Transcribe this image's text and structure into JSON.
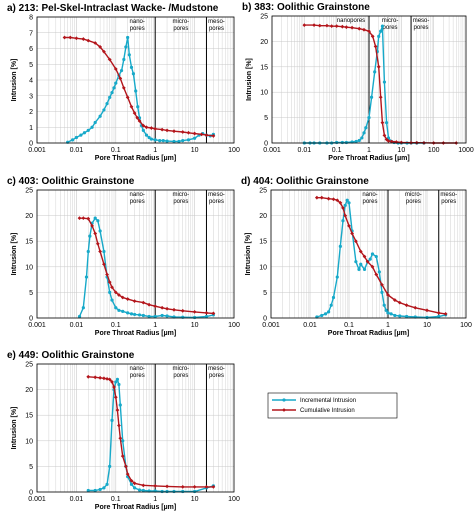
{
  "colors": {
    "incremental": "#17a9c9",
    "cumulative": "#b3151b",
    "grid": "#c8c8c8",
    "axis": "#000000"
  },
  "legend": {
    "incremental": "Incremental Intrusion",
    "cumulative": "Cumulative Intrusion"
  },
  "chart_data": [
    {
      "type": "line",
      "panel": "a",
      "title": "a) 213: Pel-Skel-Intraclast Wacke- /Mudstone",
      "xlabel": "Pore Throat Radius [µm]",
      "ylabel": "Intrusion [%]",
      "x_scale": "log",
      "xlim": [
        0.001,
        100
      ],
      "ylim": [
        0,
        8
      ],
      "yticks": [
        0,
        1,
        2,
        3,
        4,
        5,
        6,
        7,
        8
      ],
      "xticks": [
        "0.001",
        "0.01",
        "0.1",
        "1",
        "10",
        "100"
      ],
      "region_bounds": [
        1,
        20
      ],
      "regions": [
        "nano-\npores",
        "micro-\npores",
        "meso-\npores"
      ],
      "series": [
        {
          "name": "Incremental Intrusion",
          "x": [
            0.006,
            0.008,
            0.01,
            0.013,
            0.016,
            0.02,
            0.025,
            0.03,
            0.04,
            0.05,
            0.06,
            0.07,
            0.08,
            0.09,
            0.1,
            0.12,
            0.14,
            0.16,
            0.18,
            0.2,
            0.22,
            0.25,
            0.28,
            0.32,
            0.36,
            0.4,
            0.45,
            0.5,
            0.6,
            0.7,
            0.8,
            1,
            1.3,
            1.6,
            2,
            3,
            4,
            5,
            7,
            10,
            13,
            16,
            20,
            25,
            30
          ],
          "y": [
            0.05,
            0.2,
            0.35,
            0.5,
            0.65,
            0.8,
            1.0,
            1.3,
            1.7,
            2.1,
            2.5,
            2.9,
            3.2,
            3.5,
            3.8,
            4.3,
            4.6,
            5.3,
            6.1,
            6.7,
            5.6,
            4.8,
            4.4,
            3.3,
            2.3,
            1.6,
            1.1,
            0.8,
            0.5,
            0.35,
            0.25,
            0.2,
            0.15,
            0.15,
            0.12,
            0.1,
            0.1,
            0.15,
            0.2,
            0.3,
            0.5,
            0.6,
            0.5,
            0.45,
            0.55
          ]
        },
        {
          "name": "Cumulative Intrusion",
          "x": [
            0.005,
            0.007,
            0.01,
            0.015,
            0.02,
            0.03,
            0.04,
            0.05,
            0.07,
            0.1,
            0.13,
            0.16,
            0.2,
            0.25,
            0.3,
            0.35,
            0.4,
            0.5,
            0.6,
            0.8,
            1,
            1.5,
            2,
            3,
            5,
            7,
            10,
            15,
            20,
            30
          ],
          "y": [
            6.7,
            6.7,
            6.65,
            6.6,
            6.5,
            6.35,
            6.1,
            5.8,
            5.3,
            4.7,
            4.1,
            3.5,
            2.9,
            2.3,
            1.9,
            1.6,
            1.4,
            1.1,
            1.0,
            0.95,
            0.9,
            0.85,
            0.8,
            0.75,
            0.7,
            0.65,
            0.6,
            0.55,
            0.5,
            0.45
          ]
        }
      ]
    },
    {
      "type": "line",
      "panel": "b",
      "title": "b) 383: Oolithic Grainstone",
      "xlabel": "Pore Throat Radius [µm]",
      "ylabel": "Intrusion [%]",
      "x_scale": "log",
      "xlim": [
        0.001,
        1000
      ],
      "ylim": [
        0,
        25
      ],
      "yticks": [
        0,
        5,
        10,
        15,
        20,
        25
      ],
      "xticks": [
        "0.001",
        "0.01",
        "0.1",
        "1",
        "10",
        "100",
        "1000"
      ],
      "region_bounds": [
        1,
        20
      ],
      "regions": [
        "nanopores",
        "micro-\npores",
        "meso-\npores"
      ],
      "series": [
        {
          "name": "Incremental Intrusion",
          "x": [
            0.01,
            0.015,
            0.02,
            0.03,
            0.05,
            0.07,
            0.1,
            0.15,
            0.2,
            0.3,
            0.4,
            0.5,
            0.6,
            0.7,
            0.8,
            1,
            1.2,
            1.5,
            1.8,
            2,
            2.3,
            2.6,
            3,
            3.5,
            4,
            5,
            6,
            8,
            10,
            15,
            20,
            30,
            50
          ],
          "y": [
            0,
            0,
            0,
            0,
            0,
            0,
            0.1,
            0.1,
            0.1,
            0.2,
            0.3,
            0.5,
            1.0,
            2.0,
            3.0,
            5.0,
            9.0,
            14.0,
            18.0,
            21.0,
            22.0,
            23.0,
            12.0,
            4.0,
            1.0,
            0.3,
            0.1,
            0,
            0,
            0,
            0,
            0,
            0
          ]
        },
        {
          "name": "Cumulative Intrusion",
          "x": [
            0.01,
            0.02,
            0.03,
            0.05,
            0.07,
            0.1,
            0.15,
            0.2,
            0.3,
            0.5,
            0.7,
            1,
            1.3,
            1.6,
            2,
            2.3,
            2.6,
            3,
            3.5,
            4,
            5,
            7,
            10,
            20,
            30,
            50,
            100,
            200,
            500
          ],
          "y": [
            23.2,
            23.2,
            23.1,
            23.1,
            23.0,
            23.0,
            22.9,
            22.8,
            22.7,
            22.5,
            22.3,
            22.0,
            21.0,
            19.0,
            15.0,
            9.0,
            4.0,
            1.5,
            0.7,
            0.4,
            0.3,
            0.2,
            0.1,
            0.05,
            0.05,
            0.03,
            0,
            0,
            0
          ]
        }
      ]
    },
    {
      "type": "line",
      "panel": "c",
      "title": "c) 403: Oolithic Grainstone",
      "xlabel": "Pore Throat Radius [µm]",
      "ylabel": "Intrusion [%]",
      "x_scale": "log",
      "xlim": [
        0.001,
        100
      ],
      "ylim": [
        0,
        25
      ],
      "yticks": [
        0,
        5,
        10,
        15,
        20,
        25
      ],
      "xticks": [
        "0.001",
        "0.01",
        "0.1",
        "1",
        "10",
        "100"
      ],
      "region_bounds": [
        1,
        20
      ],
      "regions": [
        "nano-\npores",
        "micro-\npores",
        "meso-\npores"
      ],
      "series": [
        {
          "name": "Incremental Intrusion",
          "x": [
            0.012,
            0.015,
            0.018,
            0.02,
            0.022,
            0.025,
            0.03,
            0.035,
            0.04,
            0.05,
            0.06,
            0.07,
            0.08,
            0.1,
            0.12,
            0.15,
            0.2,
            0.25,
            0.3,
            0.4,
            0.5,
            0.7,
            1,
            1.5,
            2,
            3,
            5,
            10,
            20,
            30
          ],
          "y": [
            0.3,
            2.0,
            8.0,
            13.0,
            16.0,
            18.5,
            19.5,
            19.0,
            17.0,
            13.0,
            8.0,
            5.0,
            3.5,
            2.0,
            1.5,
            1.3,
            1.0,
            0.8,
            0.7,
            0.6,
            0.5,
            0.3,
            0.3,
            0.5,
            0.4,
            0.2,
            0.15,
            0.1,
            0.3,
            0.6
          ]
        },
        {
          "name": "Cumulative Intrusion",
          "x": [
            0.012,
            0.015,
            0.02,
            0.025,
            0.03,
            0.035,
            0.04,
            0.05,
            0.06,
            0.07,
            0.08,
            0.1,
            0.12,
            0.15,
            0.2,
            0.3,
            0.5,
            0.7,
            1,
            1.5,
            2,
            3,
            5,
            10,
            20,
            30
          ],
          "y": [
            19.5,
            19.5,
            19.4,
            18.0,
            16.5,
            14.5,
            13.0,
            10.5,
            8.5,
            7.0,
            6.0,
            5.0,
            4.5,
            4.0,
            3.7,
            3.3,
            3.0,
            2.6,
            2.3,
            2.0,
            1.8,
            1.6,
            1.4,
            1.2,
            1.0,
            0.9
          ]
        }
      ]
    },
    {
      "type": "line",
      "panel": "d",
      "title": "d) 404: Oolithic Grainstone",
      "xlabel": "Pore Throat Radius [µm]",
      "ylabel": "Intrusion [%]",
      "x_scale": "log",
      "xlim": [
        0.001,
        100
      ],
      "ylim": [
        0,
        25
      ],
      "yticks": [
        0,
        5,
        10,
        15,
        20,
        25
      ],
      "xticks": [
        "0.001",
        "0.01",
        "0.1",
        "1",
        "10",
        "100"
      ],
      "region_bounds": [
        1,
        20
      ],
      "regions": [
        "nano-\npores",
        "micro-\npores",
        "meso-\npores"
      ],
      "series": [
        {
          "name": "Incremental Intrusion",
          "x": [
            0.015,
            0.02,
            0.025,
            0.03,
            0.035,
            0.04,
            0.05,
            0.06,
            0.07,
            0.08,
            0.09,
            0.1,
            0.12,
            0.15,
            0.18,
            0.2,
            0.25,
            0.3,
            0.35,
            0.4,
            0.5,
            0.6,
            0.7,
            0.8,
            0.9,
            1,
            1.2,
            1.5,
            2,
            3,
            5,
            10,
            20,
            30
          ],
          "y": [
            0.2,
            0.5,
            0.8,
            1.2,
            2.5,
            4.0,
            8.0,
            14.0,
            19.0,
            22.0,
            23.0,
            22.5,
            17.0,
            11.0,
            9.5,
            10.5,
            9.5,
            11.0,
            11.5,
            12.5,
            12.0,
            9.0,
            5.0,
            2.5,
            1.5,
            1.0,
            0.8,
            0.5,
            0.4,
            0.3,
            0.2,
            0.1,
            0.3,
            0.6
          ]
        },
        {
          "name": "Cumulative Intrusion",
          "x": [
            0.015,
            0.02,
            0.03,
            0.04,
            0.05,
            0.06,
            0.07,
            0.08,
            0.1,
            0.12,
            0.15,
            0.2,
            0.25,
            0.3,
            0.4,
            0.5,
            0.7,
            1,
            1.5,
            2,
            3,
            5,
            10,
            20,
            30
          ],
          "y": [
            23.5,
            23.5,
            23.3,
            23.2,
            23.0,
            22.5,
            21.5,
            20.0,
            18.0,
            16.5,
            15.0,
            13.0,
            12.0,
            11.0,
            10.0,
            8.5,
            6.5,
            4.5,
            3.5,
            3.0,
            2.5,
            2.0,
            1.5,
            1.0,
            0.8
          ]
        }
      ]
    },
    {
      "type": "line",
      "panel": "e",
      "title": "e) 449: Oolithic Grainstone",
      "xlabel": "Pore Throat Radius [µm]",
      "ylabel": "Intrusion [%]",
      "x_scale": "log",
      "xlim": [
        0.001,
        100
      ],
      "ylim": [
        0,
        25
      ],
      "yticks": [
        0,
        5,
        10,
        15,
        20,
        25
      ],
      "xticks": [
        "0.001",
        "0.01",
        "0.1",
        "1",
        "10",
        "100"
      ],
      "region_bounds": [
        1,
        20
      ],
      "regions": [
        "nano-\npores",
        "micro-\npores",
        "meso-\npores"
      ],
      "series": [
        {
          "name": "Incremental Intrusion",
          "x": [
            0.02,
            0.03,
            0.04,
            0.05,
            0.06,
            0.07,
            0.08,
            0.09,
            0.1,
            0.11,
            0.12,
            0.13,
            0.15,
            0.18,
            0.2,
            0.25,
            0.3,
            0.4,
            0.5,
            0.7,
            1,
            1.5,
            2,
            3,
            5,
            10,
            20,
            30
          ],
          "y": [
            0.3,
            0.3,
            0.5,
            0.8,
            1.5,
            5.0,
            14.0,
            20.0,
            21.5,
            22.0,
            21.0,
            17.0,
            10.0,
            5.0,
            3.0,
            1.5,
            0.8,
            0.4,
            0.3,
            0.2,
            0.2,
            0.1,
            0.1,
            0.1,
            0.1,
            0.1,
            0.8,
            1.2
          ]
        },
        {
          "name": "Cumulative Intrusion",
          "x": [
            0.02,
            0.03,
            0.04,
            0.05,
            0.06,
            0.07,
            0.08,
            0.09,
            0.1,
            0.11,
            0.12,
            0.13,
            0.15,
            0.18,
            0.2,
            0.25,
            0.3,
            0.5,
            1,
            2,
            5,
            10,
            20,
            30
          ],
          "y": [
            22.5,
            22.4,
            22.3,
            22.2,
            22.1,
            22.0,
            21.5,
            20.5,
            18.5,
            16.0,
            13.0,
            10.5,
            7.0,
            5.0,
            3.5,
            2.2,
            1.7,
            1.3,
            1.2,
            1.1,
            1.0,
            1.0,
            1.0,
            1.0
          ]
        }
      ]
    }
  ]
}
